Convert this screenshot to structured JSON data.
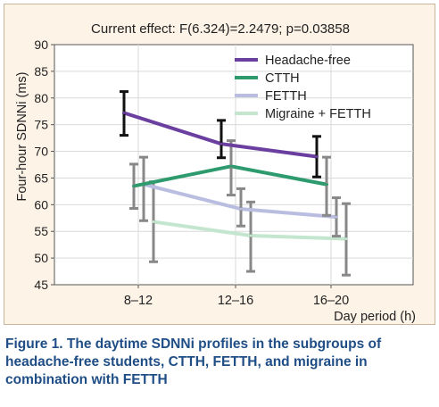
{
  "caption": "Figure 1. The daytime SDNNi profiles in the subgroups of headache-free students, CTTH, FETTH, and migraine in combination with FETTH",
  "chart_data": {
    "type": "line",
    "title": "Current effect: F(6.324)=2.2479; p=0.03858",
    "xlabel": "Day period (h)",
    "ylabel": "Four-hour SDNNi (ms)",
    "categories": [
      "8–12",
      "12–16",
      "16–20"
    ],
    "ylim": [
      45,
      90
    ],
    "yticks": [
      45,
      50,
      55,
      60,
      65,
      70,
      75,
      80,
      85,
      90
    ],
    "grid": true,
    "legend_position": "top-right",
    "series": [
      {
        "name": "Headache-free",
        "color": "#6b3fa0",
        "error_color": "#111111",
        "values": [
          77.2,
          71.4,
          69.0
        ],
        "lower": [
          73.0,
          68.8,
          65.2
        ],
        "upper": [
          81.2,
          75.8,
          72.8
        ]
      },
      {
        "name": "CTTH",
        "color": "#2e9b6e",
        "error_color": "#888888",
        "values": [
          63.5,
          67.2,
          63.8
        ],
        "lower": [
          59.3,
          61.8,
          58.0
        ],
        "upper": [
          67.6,
          72.0,
          68.9
        ]
      },
      {
        "name": "FETTH",
        "color": "#b9bee0",
        "error_color": "#888888",
        "values": [
          63.8,
          59.2,
          57.7
        ],
        "lower": [
          57.0,
          56.0,
          54.1
        ],
        "upper": [
          68.9,
          63.0,
          61.3
        ]
      },
      {
        "name": "Migraine + FETTH",
        "color": "#c4e6cf",
        "error_color": "#888888",
        "values": [
          56.8,
          54.2,
          53.6
        ],
        "lower": [
          49.3,
          47.5,
          46.8
        ],
        "upper": [
          64.3,
          60.5,
          60.2
        ]
      }
    ]
  }
}
